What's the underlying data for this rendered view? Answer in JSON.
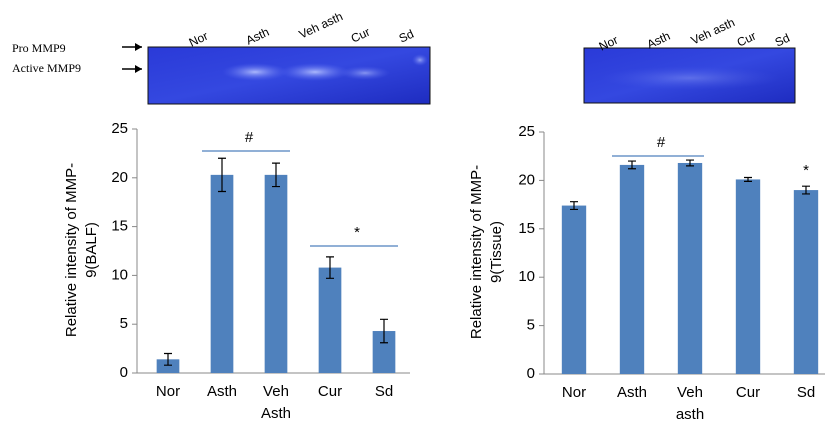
{
  "gels": [
    {
      "band_labels": [
        "Pro MMP9",
        "Active MMP9"
      ],
      "lanes": [
        "Nor",
        "Asth",
        "Veh asth",
        "Cur",
        "Sd"
      ]
    },
    {
      "lanes": [
        "Nor",
        "Asth",
        "Veh asth",
        "Cur",
        "Sd"
      ]
    }
  ],
  "chart_data": [
    {
      "type": "bar",
      "y_label": "Relative intensity of MMP-\n9(BALF)",
      "categories": [
        "Nor",
        "Asth",
        "Veh\nAsth",
        "Cur",
        "Sd"
      ],
      "values": [
        1.4,
        20.3,
        20.3,
        10.8,
        4.3
      ],
      "errors": [
        0.6,
        1.7,
        1.2,
        1.1,
        1.2
      ],
      "color": "#4f81bd",
      "ylim": [
        0,
        25
      ],
      "yticks": [
        0,
        5,
        10,
        15,
        20,
        25
      ],
      "annotations": [
        "#",
        "*"
      ]
    },
    {
      "type": "bar",
      "y_label": "Relative intensity of MMP-\n9(Tissue)",
      "categories": [
        "Nor",
        "Asth",
        "Veh\nasth",
        "Cur",
        "Sd"
      ],
      "values": [
        17.4,
        21.6,
        21.8,
        20.1,
        19.0
      ],
      "errors": [
        0.4,
        0.4,
        0.3,
        0.2,
        0.4
      ],
      "color": "#4f81bd",
      "ylim": [
        0,
        25
      ],
      "yticks": [
        0,
        5,
        10,
        15,
        20,
        25
      ],
      "annotations": [
        "#",
        "*"
      ]
    }
  ]
}
